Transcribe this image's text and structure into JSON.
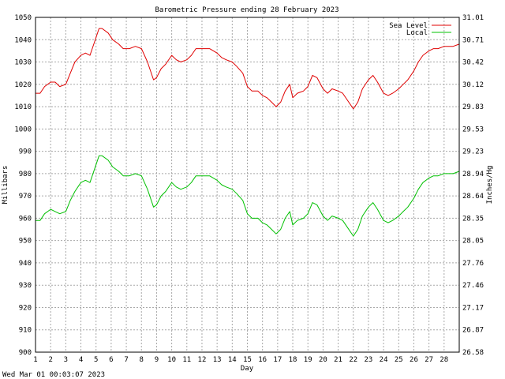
{
  "colors": {
    "background": "#ffffff",
    "grid": "#a8a8a8",
    "axis": "#000000",
    "sea_level": "#e00000",
    "local": "#00c000"
  },
  "chart_data": {
    "type": "line",
    "title": "Barometric Pressure ending 28 February 2023",
    "xlabel": "Day",
    "ylabel_left": "Millibars",
    "ylabel_right": "Inches/Hg",
    "timestamp": "Wed Mar 01 00:03:07 2023",
    "grid": true,
    "legend_position": "top-right",
    "x_ticks": [
      "1",
      "2",
      "3",
      "4",
      "5",
      "6",
      "7",
      "8",
      "9",
      "10",
      "11",
      "12",
      "13",
      "14",
      "15",
      "16",
      "17",
      "18",
      "19",
      "20",
      "21",
      "22",
      "23",
      "24",
      "25",
      "26",
      "27",
      "28"
    ],
    "xlim": [
      1,
      29
    ],
    "ylim": [
      900,
      1050
    ],
    "y_ticks_left": [
      "900",
      "910",
      "920",
      "930",
      "940",
      "950",
      "960",
      "970",
      "980",
      "990",
      "1000",
      "1010",
      "1020",
      "1030",
      "1040",
      "1050"
    ],
    "y_ticks_right": [
      "26.58",
      "26.87",
      "27.17",
      "27.46",
      "27.76",
      "28.05",
      "28.35",
      "28.64",
      "28.94",
      "29.23",
      "29.53",
      "29.83",
      "30.12",
      "30.42",
      "30.71",
      "31.01"
    ],
    "series": [
      {
        "name": "Sea Level",
        "color": "#e00000",
        "x": [
          1.0,
          1.3,
          1.6,
          2.0,
          2.3,
          2.6,
          3.0,
          3.3,
          3.6,
          4.0,
          4.3,
          4.6,
          4.9,
          5.2,
          5.4,
          5.8,
          6.1,
          6.5,
          6.8,
          7.2,
          7.6,
          8.0,
          8.4,
          8.8,
          9.0,
          9.3,
          9.6,
          10.0,
          10.3,
          10.6,
          11.0,
          11.3,
          11.6,
          12.0,
          12.5,
          13.0,
          13.3,
          13.6,
          14.0,
          14.3,
          14.7,
          15.0,
          15.3,
          15.7,
          16.0,
          16.3,
          16.6,
          16.9,
          17.2,
          17.5,
          17.8,
          18.0,
          18.3,
          18.7,
          19.0,
          19.3,
          19.6,
          20.0,
          20.3,
          20.6,
          21.0,
          21.3,
          21.6,
          22.0,
          22.3,
          22.6,
          23.0,
          23.3,
          23.6,
          24.0,
          24.3,
          24.6,
          25.0,
          25.3,
          25.6,
          26.0,
          26.3,
          26.6,
          27.0,
          27.3,
          27.6,
          28.0,
          28.3,
          28.6,
          29.0
        ],
        "values": [
          1016,
          1016,
          1019,
          1021,
          1021,
          1019,
          1020,
          1025,
          1030,
          1033,
          1034,
          1033,
          1039,
          1045,
          1045,
          1043,
          1040,
          1038,
          1036,
          1036,
          1037,
          1036,
          1030,
          1022,
          1023,
          1027,
          1029,
          1033,
          1031,
          1030,
          1031,
          1033,
          1036,
          1036,
          1036,
          1034,
          1032,
          1031,
          1030,
          1028,
          1025,
          1019,
          1017,
          1017,
          1015,
          1014,
          1012,
          1010,
          1012,
          1017,
          1020,
          1014,
          1016,
          1017,
          1019,
          1024,
          1023,
          1018,
          1016,
          1018,
          1017,
          1016,
          1013,
          1009,
          1012,
          1018,
          1022,
          1024,
          1021,
          1016,
          1015,
          1016,
          1018,
          1020,
          1022,
          1026,
          1030,
          1033,
          1035,
          1036,
          1036,
          1037,
          1037,
          1037,
          1038
        ]
      },
      {
        "name": "Local",
        "color": "#00c000",
        "x": [
          1.0,
          1.3,
          1.6,
          2.0,
          2.3,
          2.6,
          3.0,
          3.3,
          3.6,
          4.0,
          4.3,
          4.6,
          4.9,
          5.2,
          5.4,
          5.8,
          6.1,
          6.5,
          6.8,
          7.2,
          7.6,
          8.0,
          8.4,
          8.8,
          9.0,
          9.3,
          9.6,
          10.0,
          10.3,
          10.6,
          11.0,
          11.3,
          11.6,
          12.0,
          12.5,
          13.0,
          13.3,
          13.6,
          14.0,
          14.3,
          14.7,
          15.0,
          15.3,
          15.7,
          16.0,
          16.3,
          16.6,
          16.9,
          17.2,
          17.5,
          17.8,
          18.0,
          18.3,
          18.7,
          19.0,
          19.3,
          19.6,
          20.0,
          20.3,
          20.6,
          21.0,
          21.3,
          21.6,
          22.0,
          22.3,
          22.6,
          23.0,
          23.3,
          23.6,
          24.0,
          24.3,
          24.6,
          25.0,
          25.3,
          25.6,
          26.0,
          26.3,
          26.6,
          27.0,
          27.3,
          27.6,
          28.0,
          28.3,
          28.6,
          29.0
        ],
        "values": [
          959,
          959,
          962,
          964,
          963,
          962,
          963,
          968,
          972,
          976,
          977,
          976,
          982,
          988,
          988,
          986,
          983,
          981,
          979,
          979,
          980,
          979,
          973,
          965,
          966,
          970,
          972,
          976,
          974,
          973,
          974,
          976,
          979,
          979,
          979,
          977,
          975,
          974,
          973,
          971,
          968,
          962,
          960,
          960,
          958,
          957,
          955,
          953,
          955,
          960,
          963,
          957,
          959,
          960,
          962,
          967,
          966,
          961,
          959,
          961,
          960,
          959,
          956,
          952,
          955,
          961,
          965,
          967,
          964,
          959,
          958,
          959,
          961,
          963,
          965,
          969,
          973,
          976,
          978,
          979,
          979,
          980,
          980,
          980,
          981
        ]
      }
    ]
  }
}
